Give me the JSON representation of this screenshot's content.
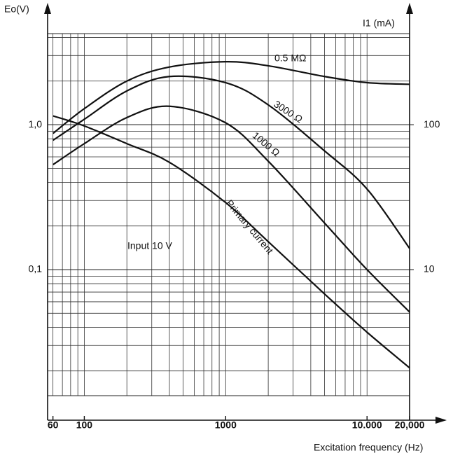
{
  "chart_data": {
    "type": "line",
    "xlabel": "Excitation frequency (Hz)",
    "ylabel": "Eo(V)",
    "y2label": "I1 (mA)",
    "annotation": "Input 10 V",
    "log_x": true,
    "log_y": true,
    "grid": true,
    "x": [
      60,
      100,
      200,
      400,
      1000,
      2000,
      5000,
      10000,
      20000
    ],
    "series": [
      {
        "name": "0.5 MΩ",
        "color": "#111",
        "values": [
          0.87,
          1.29,
          2.0,
          2.5,
          2.72,
          2.55,
          2.15,
          1.95,
          1.9
        ]
      },
      {
        "name": "3000 Ω",
        "color": "#111",
        "values": [
          0.78,
          1.09,
          1.71,
          2.15,
          1.95,
          1.37,
          0.66,
          0.36,
          0.14
        ]
      },
      {
        "name": "1000 Ω",
        "color": "#111",
        "values": [
          0.53,
          0.74,
          1.12,
          1.34,
          1.03,
          0.56,
          0.21,
          0.1,
          0.051
        ]
      },
      {
        "name": "Primary current",
        "color": "#111",
        "axis": "y2",
        "values": [
          115,
          98,
          74,
          55,
          29,
          15.6,
          6.8,
          3.7,
          2.1
        ]
      }
    ],
    "xlim": [
      55,
      20000
    ],
    "xticks": [
      60,
      100,
      1000,
      {
        "value": 10000,
        "label": "10.000"
      },
      {
        "value": 20000,
        "label": "20,000"
      }
    ],
    "ylim": [
      0.0135,
      4.25
    ],
    "yticks": [
      {
        "value": 0.1,
        "label": "0,1"
      },
      {
        "value": 1,
        "label": "1,0"
      }
    ],
    "y2lim": [
      1.35,
      425
    ],
    "y2ticks": [
      10,
      100
    ]
  }
}
